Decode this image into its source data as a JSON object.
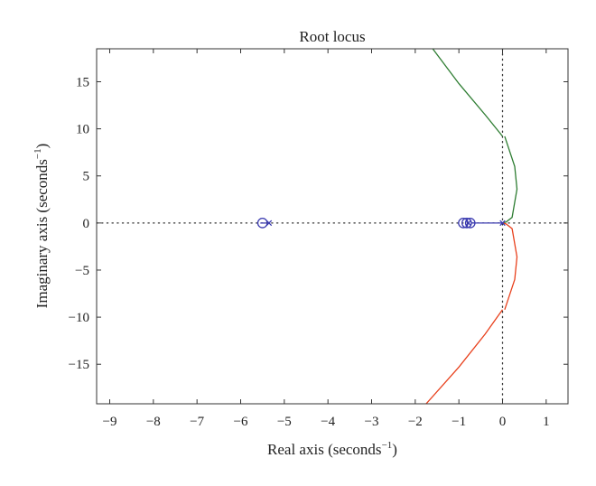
{
  "chart_data": {
    "type": "line",
    "title": "Root locus",
    "xlabel": "Real axis (seconds",
    "ylabel": "Imaginary axis (seconds",
    "axis_unit_exponent": "−1",
    "xlim": [
      -9.3,
      1.5
    ],
    "ylim": [
      -19.2,
      18.5
    ],
    "xticks": [
      -9,
      -8,
      -7,
      -6,
      -5,
      -4,
      -3,
      -2,
      -1,
      0,
      1
    ],
    "xtick_labels": [
      "−9",
      "−8",
      "−7",
      "−6",
      "−5",
      "−4",
      "−3",
      "−2",
      "−1",
      "0",
      "1"
    ],
    "yticks": [
      -15,
      -10,
      -5,
      0,
      5,
      10,
      15
    ],
    "ytick_labels": [
      "−15",
      "−10",
      "−5",
      "0",
      "5",
      "10",
      "15"
    ],
    "grid": false,
    "reference_lines": [
      {
        "orientation": "horizontal",
        "value": 0,
        "style": "dotted"
      },
      {
        "orientation": "vertical",
        "value": 0,
        "style": "dotted"
      }
    ],
    "series": [
      {
        "color": "#2e7d32",
        "x": [
          0.0,
          0.08,
          0.22,
          0.33,
          0.28,
          0.05
        ],
        "y": [
          0.0,
          0.1,
          0.6,
          3.6,
          6.0,
          9.2
        ]
      },
      {
        "color": "#2e7d32",
        "x": [
          0.0,
          -0.4,
          -1.0,
          -1.6
        ],
        "y": [
          9.2,
          11.5,
          14.8,
          18.5
        ]
      },
      {
        "color": "#e8401c",
        "x": [
          0.0,
          0.08,
          0.22,
          0.33,
          0.28,
          0.05
        ],
        "y": [
          0.0,
          -0.1,
          -0.6,
          -3.6,
          -6.0,
          -9.2
        ]
      },
      {
        "color": "#e8401c",
        "x": [
          0.0,
          -0.4,
          -1.0,
          -1.75
        ],
        "y": [
          -9.2,
          -11.8,
          -15.3,
          -19.2
        ]
      },
      {
        "color": "#3a3ab0",
        "x": [
          -0.72,
          0.0
        ],
        "y": [
          0.0,
          0.0
        ]
      },
      {
        "color": "#3a3ab0",
        "x": [
          -5.55,
          -5.42
        ],
        "y": [
          0.0,
          0.0
        ]
      }
    ],
    "poles": [
      {
        "x": 0.0,
        "y": 0.0
      },
      {
        "x": -5.35,
        "y": 0.0
      },
      {
        "x": -0.78,
        "y": 0.0
      }
    ],
    "zeros": [
      {
        "x": -5.5,
        "y": 0.0
      },
      {
        "x": -0.9,
        "y": 0.0
      },
      {
        "x": -0.82,
        "y": 0.0
      },
      {
        "x": -0.74,
        "y": 0.0
      }
    ],
    "marker_color": "#3a3ab0"
  }
}
